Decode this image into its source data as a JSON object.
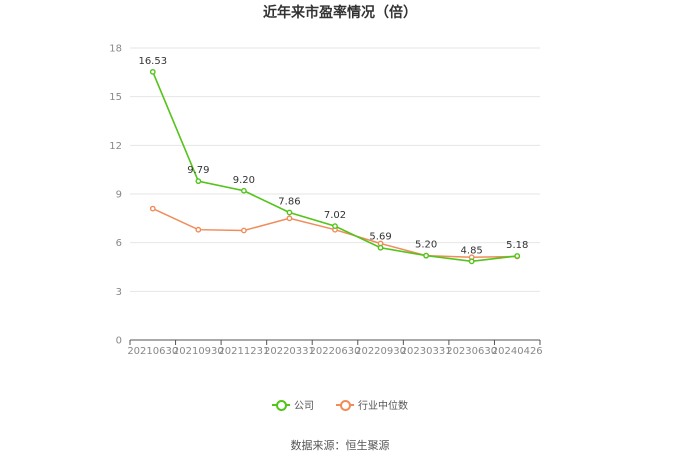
{
  "chart_data": {
    "type": "line",
    "title": "近年来市盈率情况（倍）",
    "categories": [
      "20210630",
      "20210930",
      "20211231",
      "20220331",
      "20220630",
      "20220930",
      "20230331",
      "20230630",
      "20240426"
    ],
    "series": [
      {
        "name": "公司",
        "color": "#52c41a",
        "values": [
          16.53,
          9.79,
          9.2,
          7.86,
          7.02,
          5.69,
          5.2,
          4.85,
          5.18
        ],
        "labels": [
          "16.53",
          "9.79",
          "9.20",
          "7.86",
          "7.02",
          "5.69",
          "5.20",
          "4.85",
          "5.18"
        ]
      },
      {
        "name": "行业中位数",
        "color": "#f08c5a",
        "values": [
          8.1,
          6.8,
          6.75,
          7.5,
          6.8,
          5.95,
          5.2,
          5.1,
          5.15
        ]
      }
    ],
    "ylim": [
      0,
      18
    ],
    "yticks": [
      "0",
      "3",
      "6",
      "9",
      "12",
      "15",
      "18"
    ],
    "grid": true,
    "legend_position": "bottom-center"
  },
  "source": "数据来源：恒生聚源"
}
